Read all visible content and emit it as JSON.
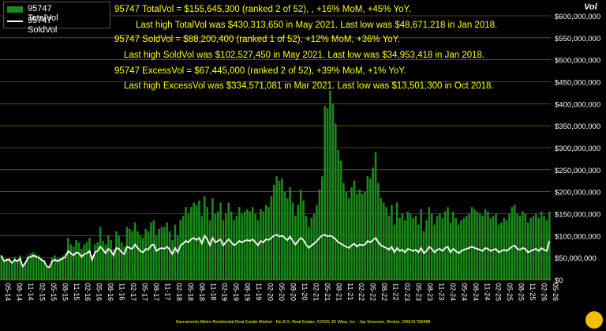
{
  "chart_data": {
    "type": "bar",
    "legend": [
      {
        "name": "95747 TotalVol",
        "kind": "bar",
        "color": "#1a8a1a"
      },
      {
        "name": "95747 SoldVol",
        "kind": "line",
        "color": "#ffffff"
      }
    ],
    "ylabel": "Vol",
    "ylim": [
      0,
      600000000
    ],
    "yticks": [
      "$0",
      "$50,000,000",
      "$100,000,000",
      "$150,000,000",
      "$200,000,000",
      "$250,000,000",
      "$300,000,000",
      "$350,000,000",
      "$400,000,000",
      "$450,000,000",
      "$500,000,000",
      "$550,000,000",
      "$600,000,000"
    ],
    "xticks": [
      "05-14",
      "08-14",
      "11-14",
      "02-15",
      "05-15",
      "08-15",
      "11-15",
      "02-16",
      "05-16",
      "08-16",
      "11-16",
      "02-17",
      "05-17",
      "08-17",
      "11-17",
      "02-18",
      "05-18",
      "08-18",
      "11-18",
      "02-19",
      "05-19",
      "08-19",
      "11-19",
      "02-20",
      "05-20",
      "08-20",
      "11-20",
      "02-21",
      "05-21",
      "08-21",
      "11-21",
      "02-22",
      "05-22",
      "08-22",
      "11-22",
      "02-23",
      "05-23",
      "08-23",
      "11-23",
      "02-24",
      "05-24",
      "08-24",
      "11-24",
      "02-25",
      "05-25",
      "08-25",
      "11-25",
      "02-26",
      "05-26"
    ],
    "annotations": [
      "95747 TotalVol = $155,645,300 (ranked 2 of 52), , +16% MoM, +45% YoY.",
      "Last high TotalVol was $430,313,650 in May 2021. Last low was $48,671,218 in Jan 2018.",
      "95747 SoldVol = $88,200,400 (ranked 1 of 52), +12% MoM, +36% YoY.",
      "Last high SoldVol was $102,527,450 in May 2021. Last low was $34,953,418 in Jan 2018.",
      "95747 ExcessVol = $67,445,000 (ranked 2 of 52), +39% MoM, +1% YoY.",
      "Last high ExcessVol was $334,571,081 in Mar 2021. Last low was $13,501,300 in Oct 2018."
    ],
    "footer": "Sacramento Metro Residential Real Estate Market - No B.S. Real Estate, ©2026 JD Wise, Inc - Jay Emerson, Broker, DRE#1788488",
    "series": [
      {
        "name": "95747 TotalVol",
        "values": [
          55,
          42,
          48,
          50,
          40,
          52,
          45,
          55,
          30,
          40,
          55,
          60,
          62,
          58,
          55,
          48,
          45,
          30,
          28,
          50,
          55,
          48,
          50,
          55,
          60,
          95,
          80,
          75,
          90,
          85,
          70,
          80,
          85,
          95,
          55,
          80,
          85,
          120,
          88,
          80,
          100,
          90,
          70,
          110,
          100,
          85,
          75,
          120,
          115,
          110,
          130,
          110,
          100,
          95,
          115,
          110,
          130,
          135,
          100,
          115,
          120,
          120,
          130,
          110,
          90,
          125,
          100,
          135,
          145,
          165,
          150,
          165,
          175,
          170,
          180,
          145,
          190,
          165,
          135,
          185,
          150,
          155,
          175,
          135,
          150,
          175,
          155,
          135,
          145,
          165,
          150,
          155,
          160,
          155,
          165,
          150,
          135,
          160,
          155,
          170,
          165,
          190,
          215,
          235,
          225,
          230,
          200,
          185,
          210,
          175,
          145,
          170,
          205,
          180,
          145,
          120,
          140,
          150,
          170,
          205,
          235,
          395,
          390,
          430,
          400,
          355,
          295,
          270,
          220,
          200,
          185,
          210,
          225,
          195,
          205,
          195,
          200,
          235,
          230,
          255,
          290,
          220,
          185,
          175,
          165,
          145,
          170,
          125,
          175,
          140,
          150,
          135,
          155,
          150,
          140,
          145,
          125,
          160,
          110,
          135,
          165,
          150,
          125,
          145,
          150,
          140,
          155,
          165,
          130,
          155,
          140,
          125,
          135,
          140,
          145,
          150,
          165,
          160,
          155,
          150,
          145,
          160,
          155,
          140,
          145,
          150,
          125,
          130,
          140,
          135,
          150,
          165,
          170,
          150,
          145,
          155,
          150,
          130,
          140,
          145,
          150,
          140,
          155,
          145,
          135,
          155
        ]
      },
      {
        "name": "95747 SoldVol",
        "values": [
          55,
          42,
          45,
          45,
          38,
          45,
          42,
          48,
          30,
          38,
          50,
          52,
          55,
          52,
          50,
          45,
          42,
          30,
          28,
          42,
          45,
          42,
          45,
          48,
          52,
          65,
          60,
          55,
          62,
          60,
          52,
          58,
          60,
          65,
          45,
          62,
          65,
          75,
          68,
          60,
          70,
          65,
          55,
          72,
          70,
          62,
          58,
          75,
          72,
          70,
          80,
          72,
          65,
          62,
          70,
          68,
          78,
          80,
          65,
          70,
          72,
          70,
          75,
          68,
          58,
          72,
          62,
          78,
          82,
          88,
          85,
          92,
          95,
          90,
          95,
          82,
          100,
          92,
          78,
          95,
          85,
          88,
          92,
          78,
          85,
          92,
          85,
          78,
          82,
          88,
          85,
          88,
          90,
          88,
          92,
          85,
          78,
          88,
          85,
          92,
          90,
          95,
          100,
          102,
          98,
          100,
          95,
          90,
          98,
          88,
          80,
          88,
          95,
          90,
          80,
          72,
          78,
          82,
          88,
          95,
          100,
          102,
          98,
          100,
          97,
          92,
          85,
          82,
          78,
          75,
          72,
          78,
          82,
          75,
          80,
          78,
          80,
          88,
          85,
          90,
          95,
          85,
          78,
          75,
          72,
          68,
          75,
          62,
          72,
          65,
          68,
          62,
          70,
          68,
          65,
          68,
          62,
          72,
          60,
          65,
          75,
          70,
          62,
          68,
          70,
          65,
          72,
          75,
          62,
          70,
          65,
          60,
          65,
          68,
          70,
          72,
          75,
          72,
          70,
          68,
          65,
          72,
          70,
          65,
          68,
          70,
          62,
          65,
          68,
          65,
          70,
          75,
          78,
          70,
          68,
          72,
          70,
          62,
          65,
          68,
          70,
          65,
          72,
          68,
          65,
          88
        ]
      }
    ]
  }
}
